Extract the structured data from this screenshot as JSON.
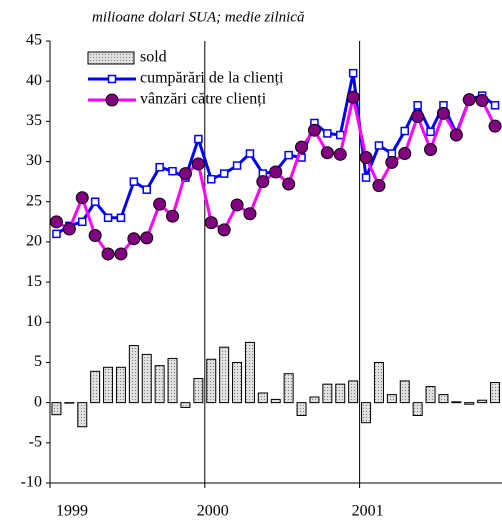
{
  "chart_data": {
    "type": "bar_line",
    "subtitle": "milioane dolari SUA; medie zilnică",
    "categories": [
      "1999",
      null,
      null,
      null,
      null,
      null,
      null,
      null,
      null,
      null,
      null,
      null,
      "2000",
      null,
      null,
      null,
      null,
      null,
      null,
      null,
      null,
      null,
      null,
      null,
      "2001",
      null,
      null,
      null,
      null,
      null,
      null,
      null,
      null,
      null,
      null
    ],
    "series": [
      {
        "name": "sold",
        "kind": "bar",
        "color": "#d0d0d0",
        "values": [
          -1.5,
          0,
          -3,
          3.9,
          4.4,
          4.4,
          7.1,
          6,
          4.6,
          5.5,
          -0.6,
          3,
          5.4,
          6.9,
          5,
          7.5,
          1.2,
          0.4,
          3.6,
          -1.6,
          0.7,
          2.3,
          2.3,
          2.7,
          -2.5,
          5,
          1,
          2.7,
          -1.6,
          2,
          1,
          0.1,
          -0.2,
          0.3,
          2.5
        ]
      },
      {
        "name": "cumpărări de la clienți",
        "kind": "line",
        "marker": "square",
        "color": "#0000ff",
        "values": [
          21,
          22,
          22.5,
          25,
          23,
          23,
          27.5,
          26.5,
          29.3,
          28.8,
          28,
          32.8,
          27.8,
          28.5,
          29.5,
          31,
          28.5,
          28.8,
          30.8,
          30.5,
          34.8,
          33.5,
          33.3,
          41,
          28,
          32,
          31,
          33.8,
          37,
          33.7,
          37,
          33.5,
          37.7,
          38.2,
          37
        ]
      },
      {
        "name": "vânzări către clienți",
        "kind": "line",
        "marker": "circle",
        "color": "#ff00ff",
        "values": [
          22.5,
          21.6,
          25.5,
          20.8,
          18.5,
          18.5,
          20.4,
          20.5,
          24.7,
          23.2,
          28.5,
          29.7,
          22.4,
          21.5,
          24.6,
          23.5,
          27.5,
          28.7,
          27.2,
          31.8,
          33.9,
          31.1,
          30.9,
          38,
          30.5,
          27,
          29.9,
          31,
          35.6,
          31.5,
          36,
          33.3,
          37.7,
          37.6,
          34.4
        ]
      }
    ],
    "ylim": [
      -10,
      45
    ],
    "yticks": [
      -10,
      -5,
      0,
      5,
      10,
      15,
      20,
      25,
      30,
      35,
      40,
      45
    ],
    "legend": "top-left"
  }
}
